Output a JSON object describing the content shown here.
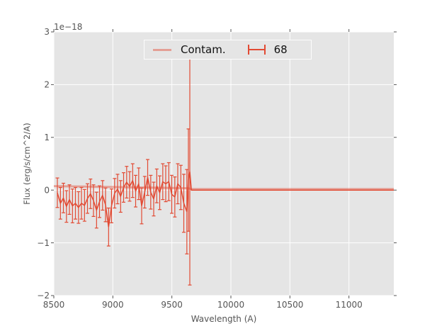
{
  "chart_data": {
    "type": "line",
    "title": "",
    "xlabel": "Wavelength (A)",
    "ylabel": "Flux (erg/s/cm^2/A)",
    "offset_text": "1e−18",
    "xlim": [
      8500,
      11380
    ],
    "ylim": [
      -2,
      3
    ],
    "x_ticks": [
      8500,
      9000,
      9500,
      10000,
      10500,
      11000
    ],
    "x_tick_labels": [
      "8500",
      "9000",
      "9500",
      "10000",
      "10500",
      "11000"
    ],
    "y_ticks": [
      -2,
      -1,
      0,
      1,
      2,
      3
    ],
    "y_tick_labels": [
      "−2",
      "−1",
      "0",
      "1",
      "2",
      "3"
    ],
    "grid": true,
    "background_color": "#e5e5e5",
    "grid_color": "#ffffff",
    "tick_color": "#555555",
    "legend_position": "upper center",
    "series": [
      {
        "name": "Contam.",
        "type": "line",
        "color": "#e24a33",
        "opacity": 0.45,
        "linewidth": 3,
        "x": [
          8500,
          9640,
          9660,
          11380
        ],
        "y": [
          0.075,
          0.035,
          0.02,
          0.02
        ]
      },
      {
        "name": "68",
        "type": "errorbar",
        "color": "#e24a33",
        "linewidth": 1.5,
        "cap_width": 5,
        "points": [
          [
            8530,
            -0.05,
            0.28
          ],
          [
            8556,
            -0.25,
            0.3
          ],
          [
            8581,
            -0.15,
            0.28
          ],
          [
            8607,
            -0.31,
            0.3
          ],
          [
            8632,
            -0.18,
            0.28
          ],
          [
            8658,
            -0.3,
            0.32
          ],
          [
            8683,
            -0.25,
            0.3
          ],
          [
            8709,
            -0.33,
            0.3
          ],
          [
            8734,
            -0.25,
            0.3
          ],
          [
            8760,
            -0.29,
            0.3
          ],
          [
            8785,
            -0.16,
            0.28
          ],
          [
            8811,
            -0.07,
            0.28
          ],
          [
            8836,
            -0.2,
            0.3
          ],
          [
            8862,
            -0.38,
            0.34
          ],
          [
            8887,
            -0.22,
            0.3
          ],
          [
            8913,
            -0.1,
            0.28
          ],
          [
            8938,
            -0.28,
            0.32
          ],
          [
            8964,
            -0.7,
            0.36
          ],
          [
            8989,
            -0.3,
            0.32
          ],
          [
            9015,
            -0.06,
            0.28
          ],
          [
            9040,
            0.02,
            0.28
          ],
          [
            9066,
            -0.12,
            0.3
          ],
          [
            9091,
            0.05,
            0.28
          ],
          [
            9117,
            0.15,
            0.3
          ],
          [
            9142,
            0.07,
            0.28
          ],
          [
            9168,
            0.18,
            0.32
          ],
          [
            9193,
            -0.02,
            0.3
          ],
          [
            9219,
            0.12,
            0.3
          ],
          [
            9244,
            -0.3,
            0.34
          ],
          [
            9270,
            -0.04,
            0.3
          ],
          [
            9295,
            0.24,
            0.34
          ],
          [
            9321,
            -0.04,
            0.32
          ],
          [
            9346,
            -0.17,
            0.32
          ],
          [
            9372,
            0.08,
            0.32
          ],
          [
            9397,
            -0.05,
            0.32
          ],
          [
            9423,
            0.16,
            0.34
          ],
          [
            9448,
            0.12,
            0.34
          ],
          [
            9474,
            0.16,
            0.36
          ],
          [
            9499,
            -0.08,
            0.36
          ],
          [
            9525,
            -0.13,
            0.38
          ],
          [
            9550,
            0.12,
            0.38
          ],
          [
            9576,
            0.05,
            0.42
          ],
          [
            9601,
            -0.25,
            0.55
          ],
          [
            9627,
            -0.41,
            0.8
          ],
          [
            9640,
            0.19,
            0.97
          ],
          [
            9652,
            0.35,
            2.15
          ],
          [
            9665,
            0.0,
            0
          ],
          [
            11380,
            0.0,
            0
          ]
        ]
      }
    ]
  },
  "legend": {
    "entries": [
      {
        "label": "Contam."
      },
      {
        "label": "68"
      }
    ]
  }
}
